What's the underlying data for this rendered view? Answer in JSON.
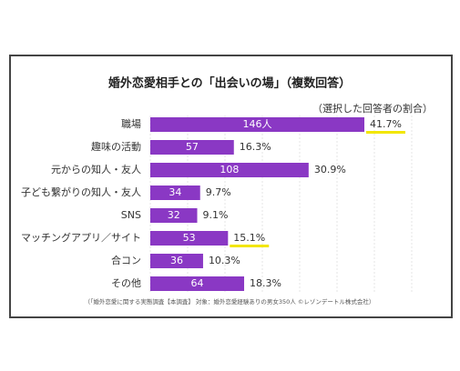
{
  "chart_data": {
    "type": "bar",
    "orientation": "horizontal",
    "title": "婚外恋愛相手との「出会いの場」（複数回答）",
    "subtitle": "（選択した回答者の割合）",
    "categories": [
      "職場",
      "趣味の活動",
      "元からの知人・友人",
      "子ども繋がりの知人・友人",
      "SNS",
      "マッチングアプリ／サイト",
      "合コン",
      "その他"
    ],
    "values": [
      146,
      57,
      108,
      34,
      32,
      53,
      36,
      64
    ],
    "value_labels": [
      "146人",
      "57",
      "108",
      "34",
      "32",
      "53",
      "36",
      "64"
    ],
    "shares": [
      {
        "value": 41.7,
        "label": "41.7%"
      },
      {
        "value": 16.3,
        "label": "16.3%"
      },
      {
        "value": 30.9,
        "label": "30.9%"
      },
      {
        "value": 9.7,
        "label": "9.7%"
      },
      {
        "value": 9.1,
        "label": "9.1%"
      },
      {
        "value": 15.1,
        "label": "15.1%"
      },
      {
        "value": 10.3,
        "label": "10.3%"
      },
      {
        "value": 18.3,
        "label": "18.3%"
      }
    ],
    "highlights": [
      0,
      5
    ],
    "highlight_color": "#f2e600",
    "color": "#8a38c4",
    "note": "（「婚外恋愛に関する実態調査【本調査】 対象：婚外恋愛経験ありの男女350人 ©レゾンデートル株式会社）"
  }
}
